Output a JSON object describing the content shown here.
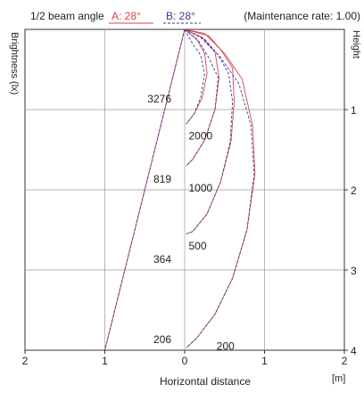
{
  "header": {
    "beam_label": "1/2 beam angle",
    "series_a_label": "A: 28°",
    "series_b_label": "B: 28°",
    "maintenance": "(Maintenance rate: 1.00)"
  },
  "colors": {
    "series_a": "#d9414f",
    "series_b": "#3a3a9a",
    "grid": "#9a9a9a",
    "axis": "#333333"
  },
  "chart_data": {
    "type": "line",
    "xlabel": "Horizontal distance",
    "x_unit": "[m]",
    "ylabel_left": "Brightness (lx)",
    "ylabel_right": "Height",
    "x_ticks": [
      "2",
      "1",
      "0",
      "1",
      "2"
    ],
    "y_ticks": [
      "1",
      "2",
      "3",
      "4"
    ],
    "xlim": [
      -2,
      2
    ],
    "ylim": [
      0,
      4
    ],
    "grid": true,
    "beam_angle_lines": {
      "series_a": [
        [
          0,
          0
        ],
        [
          -1,
          4
        ]
      ],
      "series_b": [
        [
          0,
          0
        ],
        [
          -1,
          4
        ]
      ]
    },
    "center_illuminance": [
      {
        "height": 1,
        "lux": "3276"
      },
      {
        "height": 2,
        "lux": "819"
      },
      {
        "height": 3,
        "lux": "364"
      },
      {
        "height": 4,
        "lux": "206"
      }
    ],
    "isolux_labels": [
      {
        "lux": "2000",
        "x": 0.05,
        "y": 1.33
      },
      {
        "lux": "1000",
        "x": 0.05,
        "y": 1.98
      },
      {
        "lux": "500",
        "x": 0.05,
        "y": 2.7
      },
      {
        "lux": "200",
        "x": 0.4,
        "y": 3.95
      }
    ],
    "series": [
      {
        "name": "A: 28°",
        "contours": [
          {
            "lux": 2000,
            "points": [
              [
                0,
                0
              ],
              [
                0.15,
                0.12
              ],
              [
                0.25,
                0.3
              ],
              [
                0.28,
                0.55
              ],
              [
                0.22,
                0.85
              ],
              [
                0.12,
                1.05
              ],
              [
                0.02,
                1.18
              ]
            ]
          },
          {
            "lux": 1000,
            "points": [
              [
                0,
                0
              ],
              [
                0.22,
                0.1
              ],
              [
                0.38,
                0.28
              ],
              [
                0.43,
                0.6
              ],
              [
                0.38,
                1.0
              ],
              [
                0.25,
                1.38
              ],
              [
                0.1,
                1.62
              ],
              [
                0.02,
                1.7
              ]
            ]
          },
          {
            "lux": 500,
            "points": [
              [
                0,
                0
              ],
              [
                0.3,
                0.08
              ],
              [
                0.45,
                0.25
              ],
              [
                0.6,
                0.48
              ],
              [
                0.62,
                0.9
              ],
              [
                0.58,
                1.4
              ],
              [
                0.45,
                1.9
              ],
              [
                0.28,
                2.3
              ],
              [
                0.1,
                2.52
              ],
              [
                0.02,
                2.55
              ]
            ]
          },
          {
            "lux": 200,
            "points": [
              [
                0,
                0
              ],
              [
                0.25,
                0.05
              ],
              [
                0.5,
                0.3
              ],
              [
                0.72,
                0.62
              ],
              [
                0.85,
                1.2
              ],
              [
                0.88,
                1.8
              ],
              [
                0.78,
                2.5
              ],
              [
                0.6,
                3.1
              ],
              [
                0.38,
                3.55
              ],
              [
                0.15,
                3.85
              ],
              [
                0.02,
                3.97
              ]
            ]
          }
        ]
      },
      {
        "name": "B: 28°",
        "contours": [
          {
            "lux": 2000,
            "points": [
              [
                0,
                0
              ],
              [
                0.1,
                0.18
              ],
              [
                0.2,
                0.32
              ],
              [
                0.25,
                0.55
              ],
              [
                0.2,
                0.85
              ],
              [
                0.12,
                1.05
              ],
              [
                0.02,
                1.18
              ]
            ]
          },
          {
            "lux": 1000,
            "points": [
              [
                0,
                0
              ],
              [
                0.18,
                0.15
              ],
              [
                0.3,
                0.35
              ],
              [
                0.42,
                0.6
              ],
              [
                0.38,
                1.0
              ],
              [
                0.25,
                1.38
              ],
              [
                0.1,
                1.62
              ],
              [
                0.02,
                1.7
              ]
            ]
          },
          {
            "lux": 500,
            "points": [
              [
                0,
                0
              ],
              [
                0.25,
                0.12
              ],
              [
                0.42,
                0.32
              ],
              [
                0.55,
                0.55
              ],
              [
                0.6,
                0.9
              ],
              [
                0.57,
                1.4
              ],
              [
                0.45,
                1.9
              ],
              [
                0.28,
                2.3
              ],
              [
                0.1,
                2.52
              ],
              [
                0.02,
                2.55
              ]
            ]
          },
          {
            "lux": 200,
            "points": [
              [
                0,
                0
              ],
              [
                0.2,
                0.1
              ],
              [
                0.45,
                0.35
              ],
              [
                0.68,
                0.68
              ],
              [
                0.83,
                1.2
              ],
              [
                0.87,
                1.8
              ],
              [
                0.78,
                2.5
              ],
              [
                0.6,
                3.1
              ],
              [
                0.38,
                3.55
              ],
              [
                0.15,
                3.85
              ],
              [
                0.02,
                3.97
              ]
            ]
          }
        ]
      }
    ]
  }
}
